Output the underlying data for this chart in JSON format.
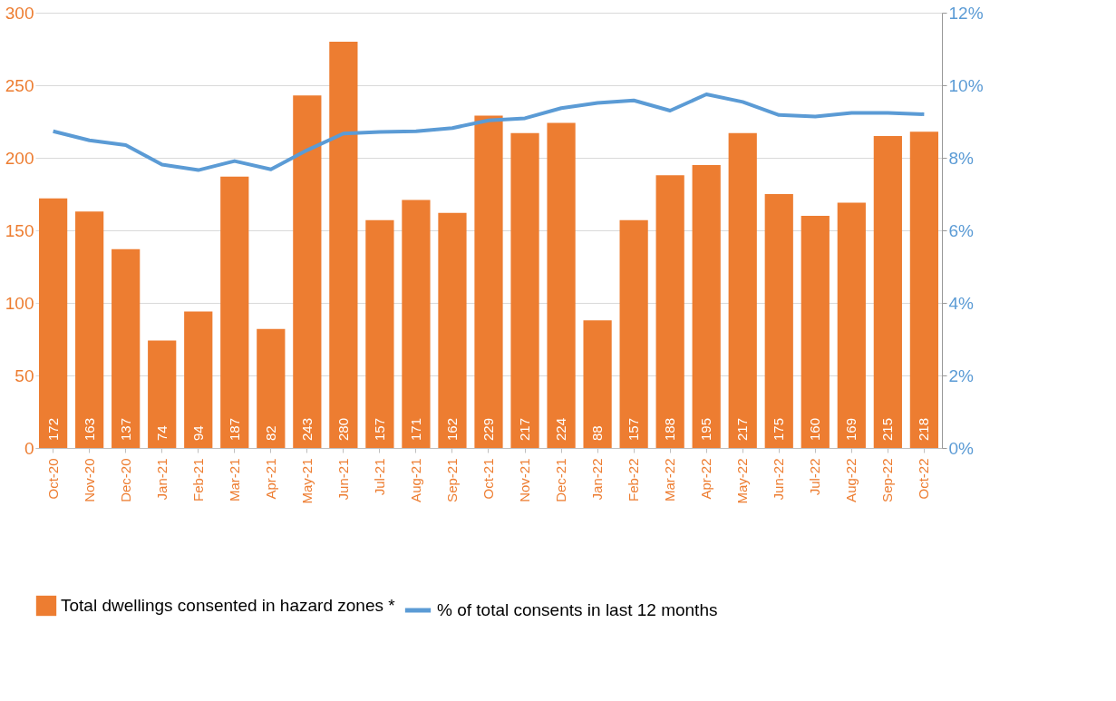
{
  "chart_data": {
    "type": "bar",
    "categories": [
      "Oct-20",
      "Nov-20",
      "Dec-20",
      "Jan-21",
      "Feb-21",
      "Mar-21",
      "Apr-21",
      "May-21",
      "Jun-21",
      "Jul-21",
      "Aug-21",
      "Sep-21",
      "Oct-21",
      "Nov-21",
      "Dec-21",
      "Jan-22",
      "Feb-22",
      "Mar-22",
      "Apr-22",
      "May-22",
      "Jun-22",
      "Jul-22",
      "Aug-22",
      "Sep-22",
      "Oct-22"
    ],
    "series": [
      {
        "name": "Total dwellings consented in hazard zones *",
        "color": "#ed7d31",
        "values": [
          172,
          163,
          137,
          74,
          94,
          187,
          82,
          243,
          280,
          157,
          171,
          162,
          229,
          217,
          224,
          88,
          157,
          188,
          195,
          217,
          175,
          160,
          169,
          215,
          218
        ],
        "value_labels": [
          "172",
          "163",
          "137",
          "74",
          "94",
          "187",
          "82",
          "243",
          "280",
          "157",
          "171",
          "162",
          "229",
          "217",
          "224",
          "88",
          "157",
          "188",
          "195",
          "217",
          "175",
          "160",
          "169",
          "215",
          "218"
        ]
      },
      {
        "name": "% of total consents in last 12 months",
        "type": "line",
        "axis": "y2",
        "color": "#5b9bd5",
        "values": [
          8.73,
          8.48,
          8.35,
          7.81,
          7.66,
          7.91,
          7.68,
          8.21,
          8.67,
          8.71,
          8.73,
          8.82,
          9.03,
          9.09,
          9.37,
          9.51,
          9.58,
          9.3,
          9.75,
          9.54,
          9.18,
          9.14,
          9.24,
          9.24,
          9.2
        ]
      }
    ],
    "ylim": [
      0,
      300
    ],
    "yticks": [
      0,
      50,
      100,
      150,
      200,
      250,
      300
    ],
    "y2lim": [
      0,
      12
    ],
    "y2ticks": [
      {
        "value": 0,
        "label": "0%"
      },
      {
        "value": 2,
        "label": "2%"
      },
      {
        "value": 4,
        "label": "4%"
      },
      {
        "value": 6,
        "label": "6%"
      },
      {
        "value": 8,
        "label": "8%"
      },
      {
        "value": 10,
        "label": "10%"
      },
      {
        "value": 12,
        "label": "12%"
      }
    ],
    "grid": "y",
    "legend": "bottom",
    "marker": "none",
    "line_style": "solid"
  }
}
